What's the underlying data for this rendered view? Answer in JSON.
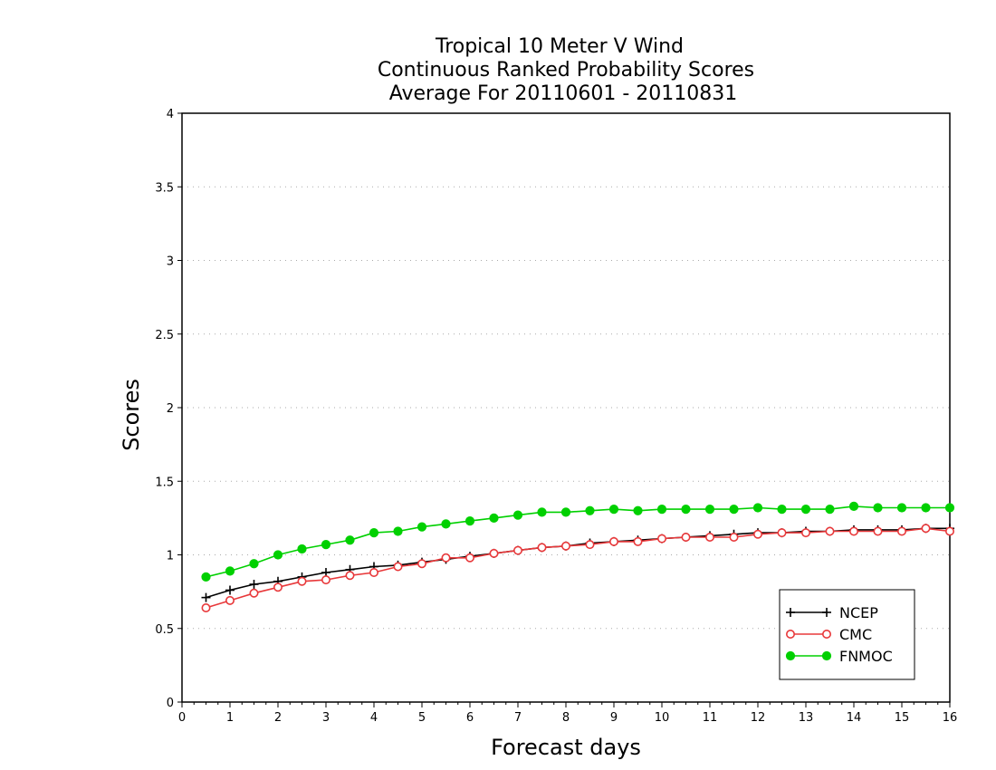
{
  "chart_data": {
    "type": "line",
    "title_lines": [
      "Tropical 10 Meter V Wind",
      "Continuous Ranked Probability Scores",
      "Average For 20110601 - 20110831"
    ],
    "xlabel": "Forecast days",
    "ylabel": "Scores",
    "xlim": [
      0,
      16
    ],
    "ylim": [
      0,
      4
    ],
    "x_ticks": [
      "0",
      "1",
      "2",
      "3",
      "4",
      "5",
      "6",
      "7",
      "8",
      "9",
      "10",
      "11",
      "12",
      "13",
      "14",
      "15",
      "16"
    ],
    "y_ticks": [
      "0",
      "0.5",
      "1",
      "1.5",
      "2",
      "2.5",
      "3",
      "3.5",
      "4"
    ],
    "y_grid": true,
    "legend_position": "bottom-right",
    "x": [
      0.5,
      1,
      1.5,
      2,
      2.5,
      3,
      3.5,
      4,
      4.5,
      5,
      5.5,
      6,
      6.5,
      7,
      7.5,
      8,
      8.5,
      9,
      9.5,
      10,
      10.5,
      11,
      11.5,
      12,
      12.5,
      13,
      13.5,
      14,
      14.5,
      15,
      15.5,
      16
    ],
    "series": [
      {
        "name": "NCEP",
        "color": "#000000",
        "marker": "plus",
        "values": [
          0.71,
          0.76,
          0.8,
          0.82,
          0.85,
          0.88,
          0.9,
          0.92,
          0.93,
          0.95,
          0.97,
          0.99,
          1.01,
          1.03,
          1.05,
          1.06,
          1.08,
          1.09,
          1.1,
          1.11,
          1.12,
          1.13,
          1.14,
          1.15,
          1.15,
          1.16,
          1.16,
          1.17,
          1.17,
          1.17,
          1.18,
          1.18
        ]
      },
      {
        "name": "CMC",
        "color": "#e8383a",
        "marker": "open-circle",
        "values": [
          0.64,
          0.69,
          0.74,
          0.78,
          0.82,
          0.83,
          0.86,
          0.88,
          0.92,
          0.94,
          0.98,
          0.98,
          1.01,
          1.03,
          1.05,
          1.06,
          1.07,
          1.09,
          1.09,
          1.11,
          1.12,
          1.12,
          1.12,
          1.14,
          1.15,
          1.15,
          1.16,
          1.16,
          1.16,
          1.16,
          1.18,
          1.16
        ]
      },
      {
        "name": "FNMOC",
        "color": "#00d000",
        "marker": "filled-circle",
        "values": [
          0.85,
          0.89,
          0.94,
          1.0,
          1.04,
          1.07,
          1.1,
          1.15,
          1.16,
          1.19,
          1.21,
          1.23,
          1.25,
          1.27,
          1.29,
          1.29,
          1.3,
          1.31,
          1.3,
          1.31,
          1.31,
          1.31,
          1.31,
          1.32,
          1.31,
          1.31,
          1.31,
          1.33,
          1.32,
          1.32,
          1.32,
          1.32
        ]
      }
    ]
  }
}
